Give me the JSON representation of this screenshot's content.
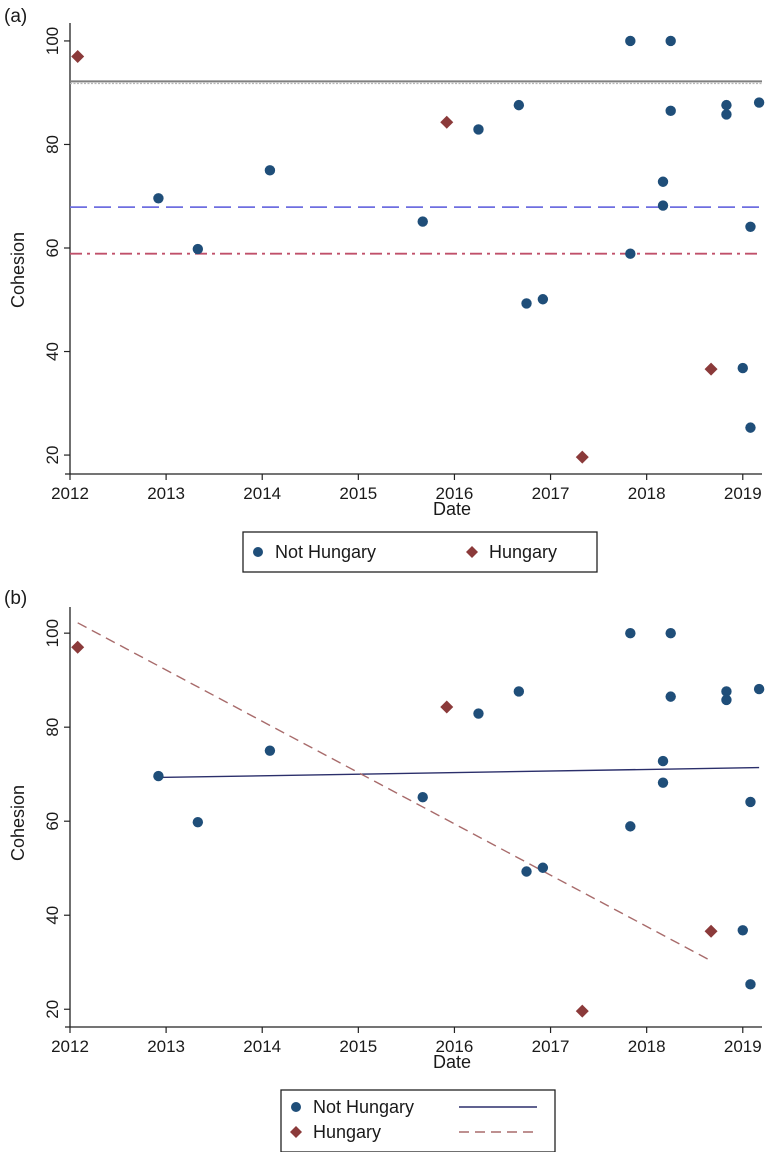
{
  "chart_data": [
    {
      "panel_label": "(a)",
      "type": "scatter",
      "xlabel": "Date",
      "ylabel": "Cohesion",
      "xlim": [
        2012,
        2019.2
      ],
      "ylim": [
        17.5,
        102.5
      ],
      "xticks": [
        "2012",
        "2013",
        "2014",
        "2015",
        "2016",
        "2017",
        "2018",
        "2019"
      ],
      "yticks": [
        "20",
        "40",
        "60",
        "80",
        "100"
      ],
      "grid": false,
      "legend_position": "bottom",
      "series": [
        {
          "name": "Not Hungary",
          "marker": "circle",
          "color": "#1f4e79",
          "x": [
            2012.92,
            2013.33,
            2014.08,
            2015.67,
            2016.25,
            2016.67,
            2016.75,
            2016.92,
            2017.83,
            2017.83,
            2018.17,
            2018.17,
            2018.25,
            2018.25,
            2018.83,
            2018.83,
            2019.0,
            2019.08,
            2019.08,
            2019.17
          ],
          "y": [
            69.6,
            59.8,
            75.0,
            65.1,
            82.9,
            87.6,
            49.3,
            50.1,
            100.0,
            58.9,
            72.8,
            68.2,
            100.0,
            86.5,
            87.6,
            85.8,
            36.8,
            64.1,
            25.3,
            88.1
          ]
        },
        {
          "name": "Hungary",
          "marker": "diamond",
          "color": "#8b3a3a",
          "x": [
            2012.08,
            2015.92,
            2017.33,
            2018.67
          ],
          "y": [
            97.0,
            84.3,
            19.6,
            36.6
          ]
        }
      ],
      "reference_lines": [
        {
          "style": "solid",
          "color": "#7f7f7f",
          "y": 92.2
        },
        {
          "style": "dashed",
          "color": "#6e6ee0",
          "y": 67.9
        },
        {
          "style": "dashdot",
          "color": "#c0506a",
          "y": 58.9
        }
      ]
    },
    {
      "panel_label": "(b)",
      "type": "scatter",
      "xlabel": "Date",
      "ylabel": "Cohesion",
      "xlim": [
        2012,
        2019.2
      ],
      "ylim": [
        17.5,
        104.5
      ],
      "xticks": [
        "2012",
        "2013",
        "2014",
        "2015",
        "2016",
        "2017",
        "2018",
        "2019"
      ],
      "yticks": [
        "20",
        "40",
        "60",
        "80",
        "100"
      ],
      "grid": false,
      "legend_position": "bottom",
      "series": [
        {
          "name": "Not Hungary",
          "marker": "circle",
          "color": "#1f4e79",
          "x": [
            2012.92,
            2013.33,
            2014.08,
            2015.67,
            2016.25,
            2016.67,
            2016.75,
            2016.92,
            2017.83,
            2017.83,
            2018.17,
            2018.17,
            2018.25,
            2018.25,
            2018.83,
            2018.83,
            2019.0,
            2019.08,
            2019.08,
            2019.17
          ],
          "y": [
            69.6,
            59.8,
            75.0,
            65.1,
            82.9,
            87.6,
            49.3,
            50.1,
            100.0,
            58.9,
            72.8,
            68.2,
            100.0,
            86.5,
            87.6,
            85.8,
            36.8,
            64.1,
            25.3,
            88.1
          ]
        },
        {
          "name": "Hungary",
          "marker": "diamond",
          "color": "#8b3a3a",
          "x": [
            2012.08,
            2015.92,
            2017.33,
            2018.67
          ],
          "y": [
            97.0,
            84.3,
            19.6,
            36.6
          ]
        }
      ],
      "fit_lines": [
        {
          "series": "Not Hungary",
          "style": "solid",
          "color": "#2b2f6b",
          "x": [
            2012.92,
            2019.17
          ],
          "y": [
            69.3,
            71.4
          ]
        },
        {
          "series": "Hungary",
          "style": "dashed",
          "color": "#a86b6b",
          "x": [
            2012.08,
            2018.67
          ],
          "y": [
            102.2,
            30.3
          ]
        }
      ]
    }
  ]
}
